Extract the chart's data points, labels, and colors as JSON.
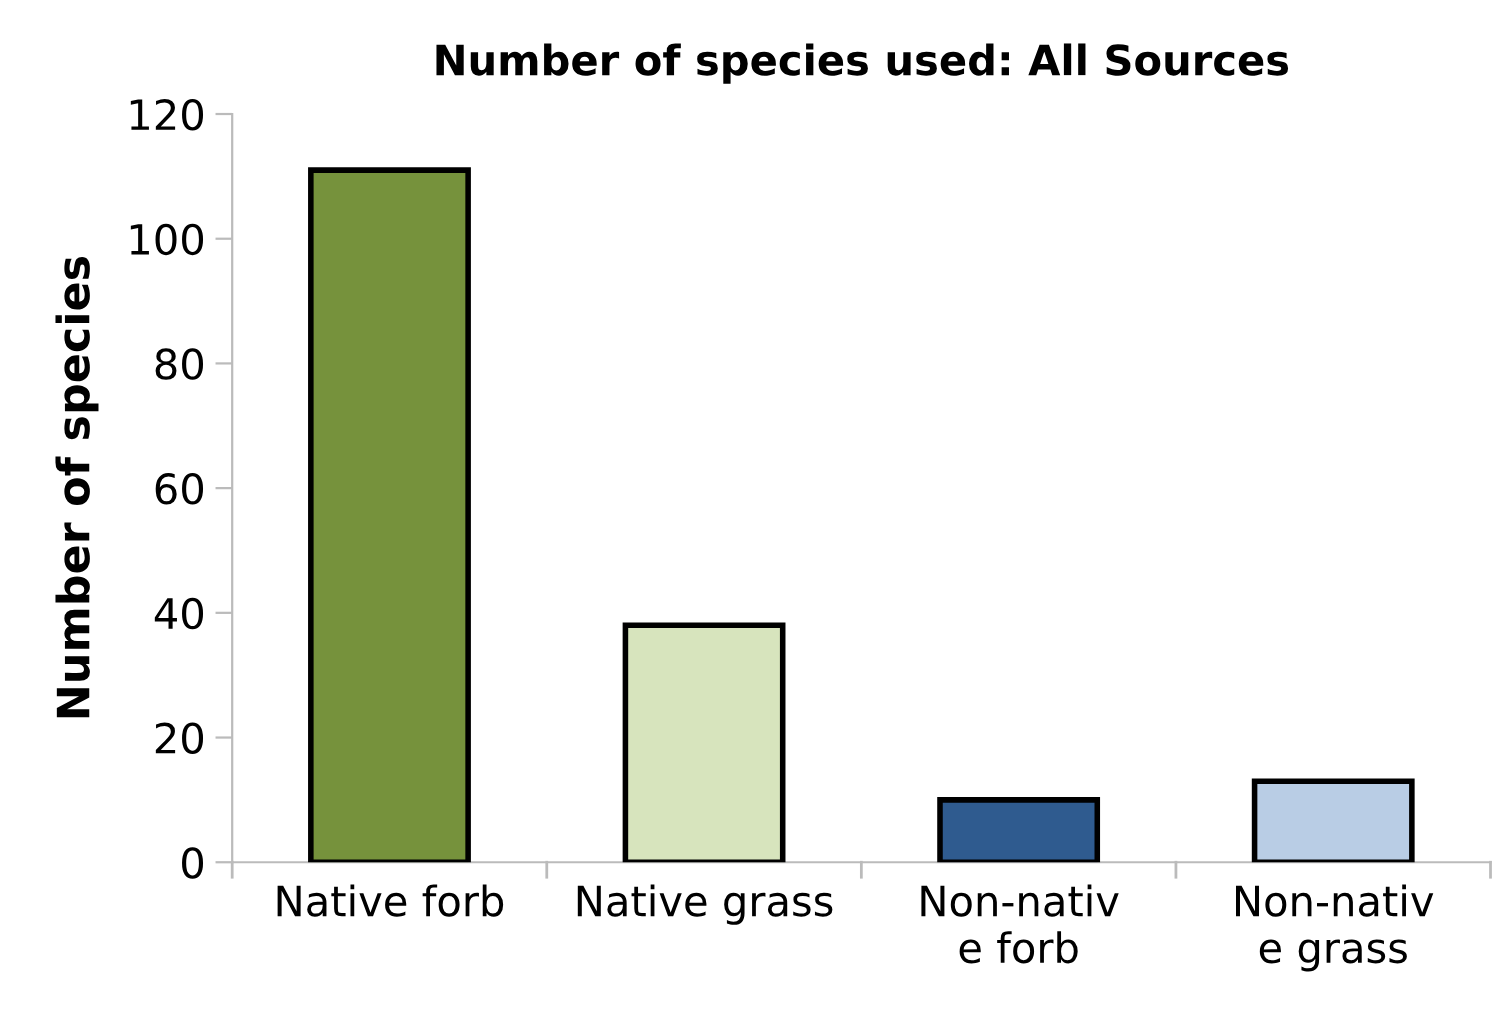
{
  "chart_data": {
    "type": "bar",
    "title": "Number of species used: All Sources",
    "ylabel": "Number of species",
    "categories": [
      "Native forb",
      "Native grass",
      "Non-nativ\ne forb",
      "Non-nativ\ne grass"
    ],
    "values": [
      111,
      38,
      10,
      13
    ],
    "colors": [
      "#76923c",
      "#d7e4bd",
      "#2f5b8f",
      "#b9cde5"
    ],
    "ylim": [
      0,
      120
    ],
    "yticks": [
      0,
      20,
      40,
      60,
      80,
      100,
      120
    ],
    "grid": false,
    "legend": false
  }
}
